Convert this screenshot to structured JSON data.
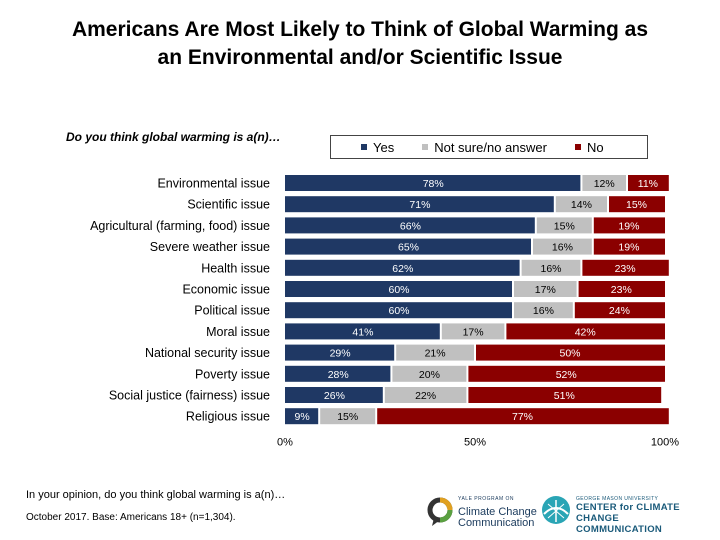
{
  "title_line1": "Americans Are Most Likely to Think of Global Warming as",
  "title_line2": "an Environmental and/or Scientific Issue",
  "question": "Do you think global warming is a(n)…",
  "footnote_question": "In your opinion, do you think global warming is a(n)…",
  "footnote_base": "October 2017. Base: Americans 18+ (n=1,304).",
  "logo_yale": {
    "small": "YALE PROGRAM ON",
    "line1": "Climate Change",
    "line2": "Communication"
  },
  "logo_gmu": {
    "small": "GEORGE MASON UNIVERSITY",
    "line1": "CENTER for CLIMATE CHANGE",
    "line2": "COMMUNICATION"
  },
  "colors": {
    "yes": "#1f3864",
    "not_sure": "#c0c0c0",
    "no": "#8b0000"
  },
  "chart_data": {
    "type": "bar",
    "orientation": "horizontal",
    "stacked": true,
    "categories": [
      "Environmental issue",
      "Scientific issue",
      "Agricultural (farming, food) issue",
      "Severe weather issue",
      "Health issue",
      "Economic issue",
      "Political issue",
      "Moral issue",
      "National security issue",
      "Poverty issue",
      "Social justice (fairness) issue",
      "Religious issue"
    ],
    "series": [
      {
        "name": "Yes",
        "values": [
          78,
          71,
          66,
          65,
          62,
          60,
          60,
          41,
          29,
          28,
          26,
          9
        ]
      },
      {
        "name": "Not sure/no answer",
        "values": [
          12,
          14,
          15,
          16,
          16,
          17,
          16,
          17,
          21,
          20,
          22,
          15
        ]
      },
      {
        "name": "No",
        "values": [
          11,
          15,
          19,
          19,
          23,
          23,
          24,
          42,
          50,
          52,
          51,
          77
        ]
      }
    ],
    "xlim": [
      0,
      100
    ],
    "x_ticks": [
      "0%",
      "50%",
      "100%"
    ],
    "legend_position": "top-right",
    "grid": false
  }
}
